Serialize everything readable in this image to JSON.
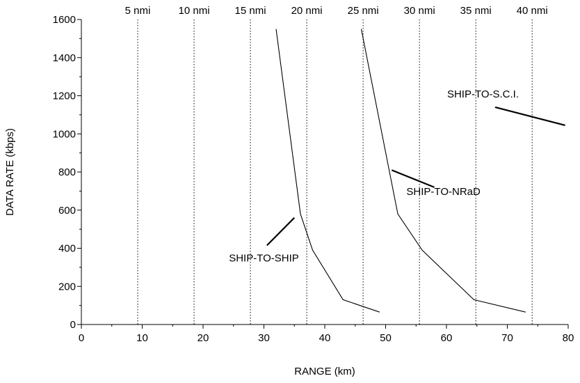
{
  "chart_data": {
    "type": "line",
    "xlabel": "RANGE (km)",
    "ylabel": "DATA RATE (kbps)",
    "xlim": [
      0,
      80
    ],
    "ylim": [
      0,
      1600
    ],
    "x_ticks": [
      0,
      10,
      20,
      30,
      40,
      50,
      60,
      70,
      80
    ],
    "y_ticks": [
      0,
      200,
      400,
      600,
      800,
      1000,
      1200,
      1400,
      1600
    ],
    "x_minor_ticks": [
      5,
      15,
      25,
      35,
      45,
      55,
      65,
      75
    ],
    "y_minor_ticks": [
      100,
      300,
      500,
      700,
      900,
      1100,
      1300,
      1500
    ],
    "top_axis": {
      "unit_note": "nmi",
      "marks": [
        {
          "label": "5 nmi",
          "km": 9.26
        },
        {
          "label": "10 nmi",
          "km": 18.52
        },
        {
          "label": "15 nmi",
          "km": 27.78
        },
        {
          "label": "20 nmi",
          "km": 37.04
        },
        {
          "label": "25 nmi",
          "km": 46.3
        },
        {
          "label": "30 nmi",
          "km": 55.56
        },
        {
          "label": "35 nmi",
          "km": 64.82
        },
        {
          "label": "40 nmi",
          "km": 74.08
        }
      ]
    },
    "grid": "vertical dotted lines at nmi marks",
    "series": [
      {
        "name": "SHIP-TO-SHIP",
        "points": [
          [
            32,
            1550
          ],
          [
            36,
            580
          ],
          [
            38,
            390
          ],
          [
            43,
            130
          ],
          [
            49,
            65
          ]
        ]
      },
      {
        "name": "SHIP-TO-NRaD",
        "points": [
          [
            46,
            1550
          ],
          [
            52,
            580
          ],
          [
            56,
            390
          ],
          [
            64.5,
            130
          ],
          [
            73,
            65
          ]
        ]
      },
      {
        "name": "SHIP-TO-S.C.I.",
        "points": []
      }
    ],
    "annotations": [
      {
        "text": "SHIP-TO-SHIP",
        "x": 30,
        "y": 330,
        "leader": [
          [
            30.5,
            415
          ],
          [
            35,
            560
          ]
        ]
      },
      {
        "text": "SHIP-TO-NRaD",
        "x": 59.5,
        "y": 680,
        "leader": [
          [
            51,
            810
          ],
          [
            58,
            720
          ]
        ]
      },
      {
        "text": "SHIP-TO-S.C.I.",
        "x": 66,
        "y": 1190,
        "leader": [
          [
            68,
            1140
          ],
          [
            79.5,
            1045
          ]
        ]
      }
    ]
  }
}
